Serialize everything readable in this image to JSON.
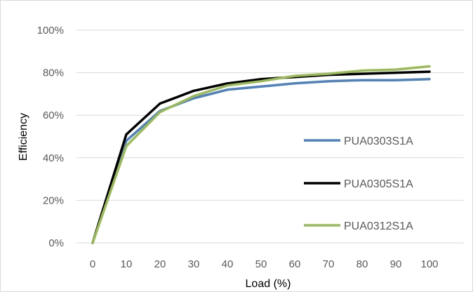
{
  "chart_data": {
    "type": "line",
    "title": "",
    "xlabel": "Load (%)",
    "ylabel": "Efficiency",
    "x": [
      0,
      10,
      20,
      30,
      40,
      50,
      60,
      70,
      80,
      90,
      100
    ],
    "x_tick_labels": [
      "0",
      "10",
      "20",
      "30",
      "40",
      "50",
      "60",
      "70",
      "80",
      "90",
      "100"
    ],
    "y_tick_labels": [
      "0%",
      "20%",
      "40%",
      "60%",
      "80%",
      "100%"
    ],
    "y_ticks": [
      0,
      20,
      40,
      60,
      80,
      100
    ],
    "ylim": [
      0,
      100
    ],
    "grid": true,
    "legend_position": "right",
    "series": [
      {
        "name": "PUA0303S1A",
        "color": "#4f81bd",
        "values": [
          0,
          48,
          62,
          68,
          72,
          73.5,
          75,
          76,
          76.5,
          76.5,
          77
        ]
      },
      {
        "name": "PUA0305S1A",
        "color": "#000000",
        "values": [
          0,
          51,
          65.5,
          71.5,
          75,
          77,
          78,
          79,
          79.5,
          80,
          80.5
        ]
      },
      {
        "name": "PUA0312S1A",
        "color": "#9bbb59",
        "values": [
          0,
          45.5,
          61.5,
          69,
          74,
          76,
          78.5,
          79.5,
          81,
          81.5,
          83
        ]
      }
    ]
  }
}
